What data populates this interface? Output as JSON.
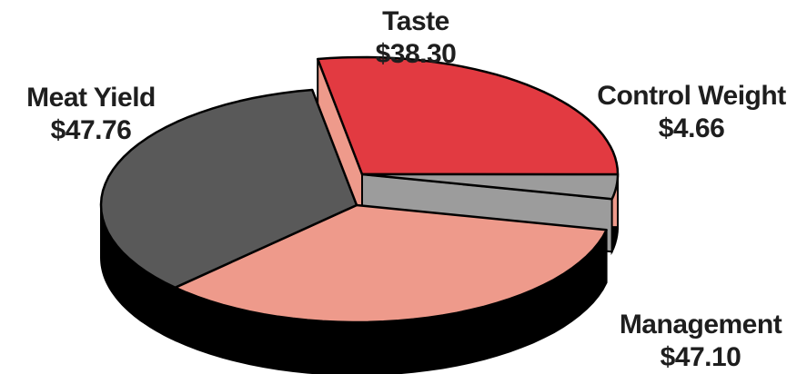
{
  "chart_data": {
    "type": "pie",
    "style": "3d-exploded",
    "title": "",
    "slices": [
      {
        "label": "Taste",
        "value_label": "$38.30",
        "value": 38.3,
        "color": "#e23a41",
        "exploded": true
      },
      {
        "label": "Control Weight",
        "value_label": "$4.66",
        "value": 4.66,
        "color": "#9c9c9c",
        "exploded": true
      },
      {
        "label": "Management",
        "value_label": "$47.10",
        "value": 47.1,
        "color": "#ee9a8b",
        "exploded": false
      },
      {
        "label": "Meat Yield",
        "value_label": "$47.76",
        "value": 47.76,
        "color": "#595959",
        "exploded": false
      }
    ]
  }
}
